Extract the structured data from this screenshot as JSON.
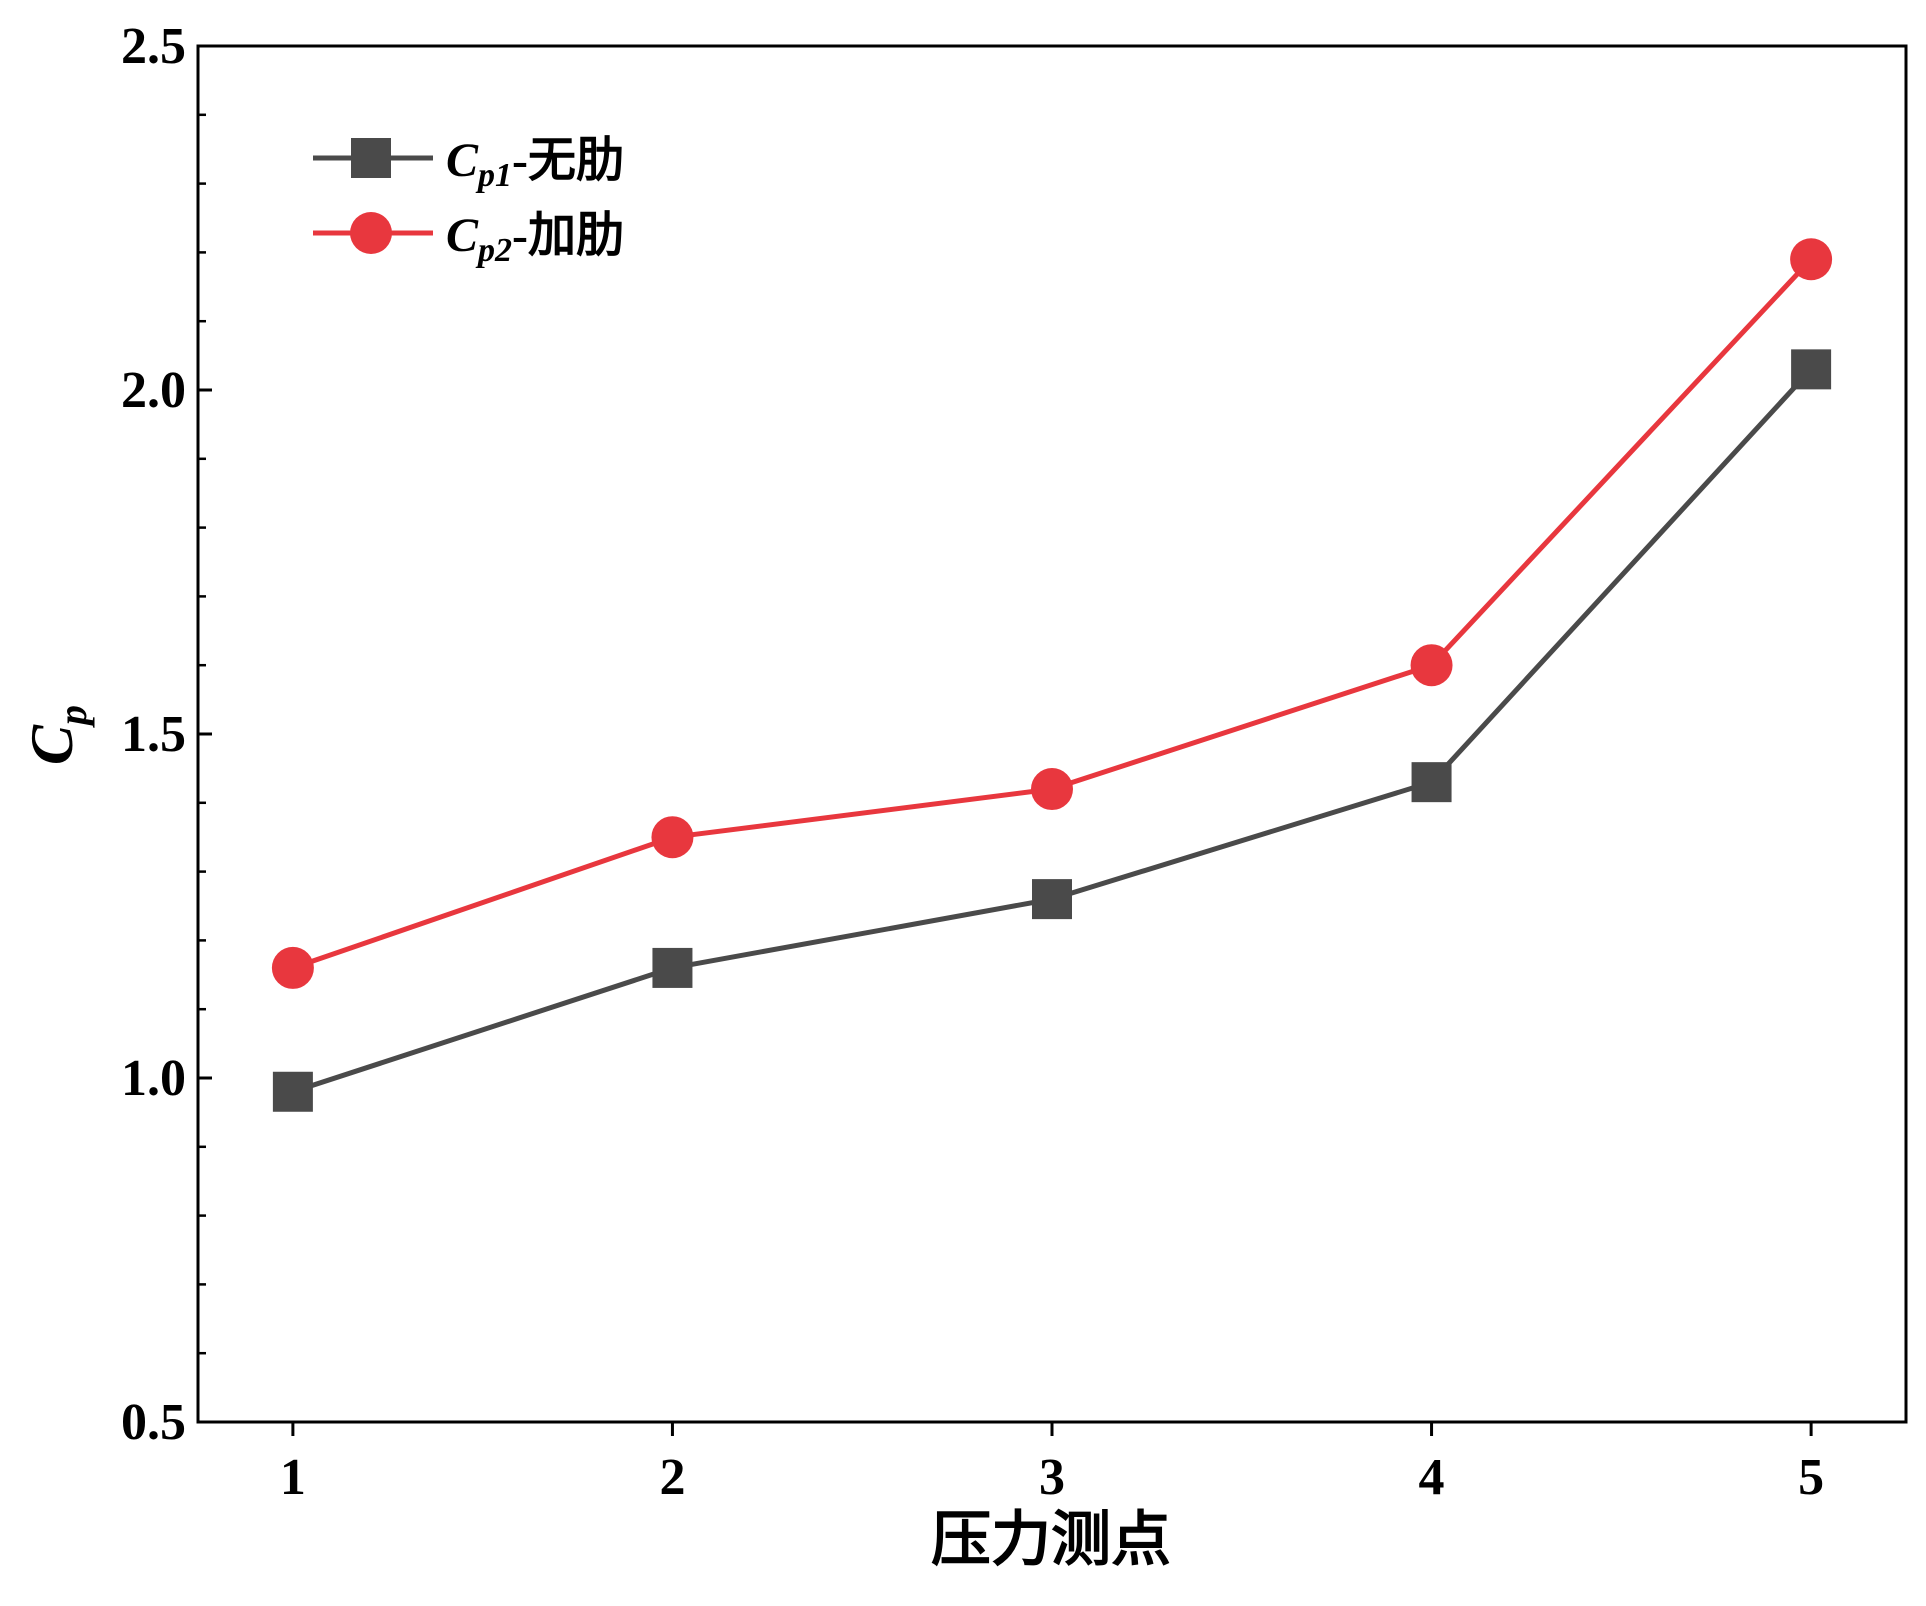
{
  "chart_data": {
    "type": "line",
    "title": "",
    "xlabel": "压力测点",
    "ylabel": {
      "base": "C",
      "sub": "p"
    },
    "categories": [
      "1",
      "2",
      "3",
      "4",
      "5"
    ],
    "x": [
      1,
      2,
      3,
      4,
      5
    ],
    "xlim": [
      0.75,
      5.25
    ],
    "ylim": [
      0.5,
      2.5
    ],
    "y_major_ticks": [
      0.5,
      1.0,
      1.5,
      2.0,
      2.5
    ],
    "y_tick_labels": [
      "0.5",
      "1.0",
      "1.5",
      "2.0",
      "2.5"
    ],
    "y_minor_step": 0.1,
    "grid": false,
    "legend_position": "top-left",
    "series": [
      {
        "name": "Cp1-无肋",
        "legend": {
          "base": "C",
          "sub": "p1",
          "suffix": "-无肋"
        },
        "marker": "square",
        "color": "#4a4a4a",
        "values": [
          0.98,
          1.16,
          1.26,
          1.43,
          2.03
        ]
      },
      {
        "name": "Cp2-加肋",
        "legend": {
          "base": "C",
          "sub": "p2",
          "suffix": "-加肋"
        },
        "marker": "circle",
        "color": "#e8373e",
        "values": [
          1.16,
          1.35,
          1.42,
          1.6,
          2.19
        ]
      }
    ]
  }
}
